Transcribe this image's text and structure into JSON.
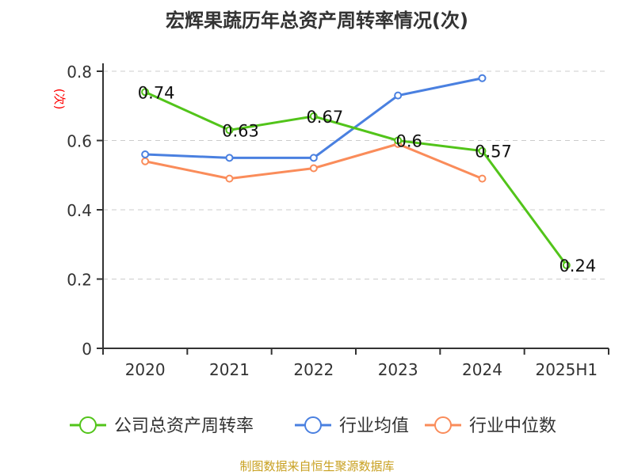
{
  "chart_data": {
    "type": "line",
    "title": "宏辉果蔬历年总资产周转率情况(次)",
    "ylabel": "(次)",
    "categories": [
      "2020",
      "2021",
      "2022",
      "2023",
      "2024",
      "2025H1"
    ],
    "ylim": [
      0,
      0.8
    ],
    "yticks": [
      "0",
      "0.2",
      "0.4",
      "0.6",
      "0.8"
    ],
    "grid": true,
    "legend_position": "bottom",
    "series": [
      {
        "name": "公司总资产周转率",
        "color": "#52c41a",
        "values": [
          0.74,
          0.63,
          0.67,
          0.6,
          0.57,
          0.24
        ],
        "labels": [
          "0.74",
          "0.63",
          "0.67",
          "0.6",
          "0.57",
          "0.24"
        ]
      },
      {
        "name": "行业均值",
        "color": "#4a80e0",
        "values": [
          0.56,
          0.55,
          0.55,
          0.73,
          0.78,
          null
        ]
      },
      {
        "name": "行业中位数",
        "color": "#fa8c5a",
        "values": [
          0.54,
          0.49,
          0.52,
          0.59,
          0.49,
          null
        ]
      }
    ]
  },
  "source": "制图数据来自恒生聚源数据库"
}
